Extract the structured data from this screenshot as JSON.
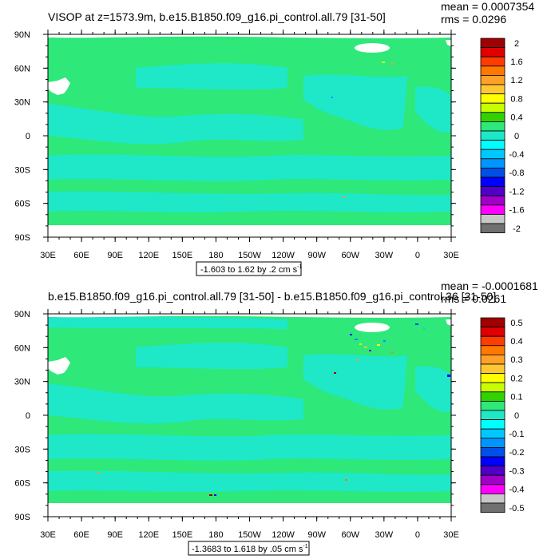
{
  "colors": {
    "ocean_base": "#2ee87a",
    "ocean_low": "#1ee8c8",
    "land": "#ffffff",
    "frame": "#000000"
  },
  "chart_data": [
    {
      "type": "heatmap",
      "title": "VISOP at z=1573.9m, b.e15.B1850.f09_g16.pi_control.all.79 [31-50]",
      "stats": {
        "mean": "mean = 0.0007354",
        "rms": "rms = 0.0296"
      },
      "range_label": "-1.603 to 1.62 by .2 cm s",
      "range_sup": "-1",
      "xlabel": "",
      "ylabel": "",
      "xtick_labels": [
        "30E",
        "60E",
        "90E",
        "120E",
        "150E",
        "180",
        "150W",
        "120W",
        "90W",
        "60W",
        "30W",
        "0",
        "30E"
      ],
      "ytick_labels": [
        "90N",
        "60N",
        "30N",
        "0",
        "30S",
        "60S",
        "90S"
      ],
      "xlim_lon_east": [
        30,
        390
      ],
      "ylim_lat": [
        -90,
        90
      ],
      "colorbar": {
        "labels": [
          "2",
          "1.6",
          "1.2",
          "0.8",
          "0.4",
          "0",
          "-0.4",
          "-0.8",
          "-1.2",
          "-1.6",
          "-2"
        ],
        "colors": [
          "#a00000",
          "#e00000",
          "#ff3c00",
          "#ff7800",
          "#ffa028",
          "#ffc832",
          "#ffff00",
          "#c8ff00",
          "#32d200",
          "#2ee87a",
          "#1ee8c8",
          "#00ffff",
          "#00c8ff",
          "#0096ff",
          "#0050e6",
          "#0000ff",
          "#5000c8",
          "#a000c8",
          "#ff00ff",
          "#c8c8c8",
          "#707070"
        ]
      },
      "dominant_value_bin": "0 to 0.4 (green) with large regions -0.4 to 0 (aqua)"
    },
    {
      "type": "heatmap",
      "title": "b.e15.B1850.f09_g16.pi_control.all.79 [31-50] - b.e15.B1850.f09_g16.pi_control.36 [31-50]",
      "stats": {
        "mean": "mean = -0.0001681",
        "rms": "rms = 0.0261"
      },
      "range_label": "-1.3683 to 1.618 by .05 cm s",
      "range_sup": "-1",
      "xlabel": "",
      "ylabel": "",
      "xtick_labels": [
        "30E",
        "60E",
        "90E",
        "120E",
        "150E",
        "180",
        "150W",
        "120W",
        "90W",
        "60W",
        "30W",
        "0",
        "30E"
      ],
      "ytick_labels": [
        "90N",
        "60N",
        "30N",
        "0",
        "30S",
        "60S",
        "90S"
      ],
      "xlim_lon_east": [
        30,
        390
      ],
      "ylim_lat": [
        -90,
        90
      ],
      "colorbar": {
        "labels": [
          "0.5",
          "0.4",
          "0.3",
          "0.2",
          "0.1",
          "0",
          "-0.1",
          "-0.2",
          "-0.3",
          "-0.4",
          "-0.5"
        ],
        "colors": [
          "#a00000",
          "#e00000",
          "#ff3c00",
          "#ff7800",
          "#ffa028",
          "#ffc832",
          "#ffff00",
          "#c8ff00",
          "#32d200",
          "#2ee87a",
          "#1ee8c8",
          "#00ffff",
          "#00c8ff",
          "#0096ff",
          "#0050e6",
          "#0000ff",
          "#5000c8",
          "#a000c8",
          "#ff00ff",
          "#c8c8c8",
          "#707070"
        ]
      },
      "dominant_value_bin": "0 to 0.1 (green) with large regions -0.1 to 0 (aqua)"
    }
  ]
}
